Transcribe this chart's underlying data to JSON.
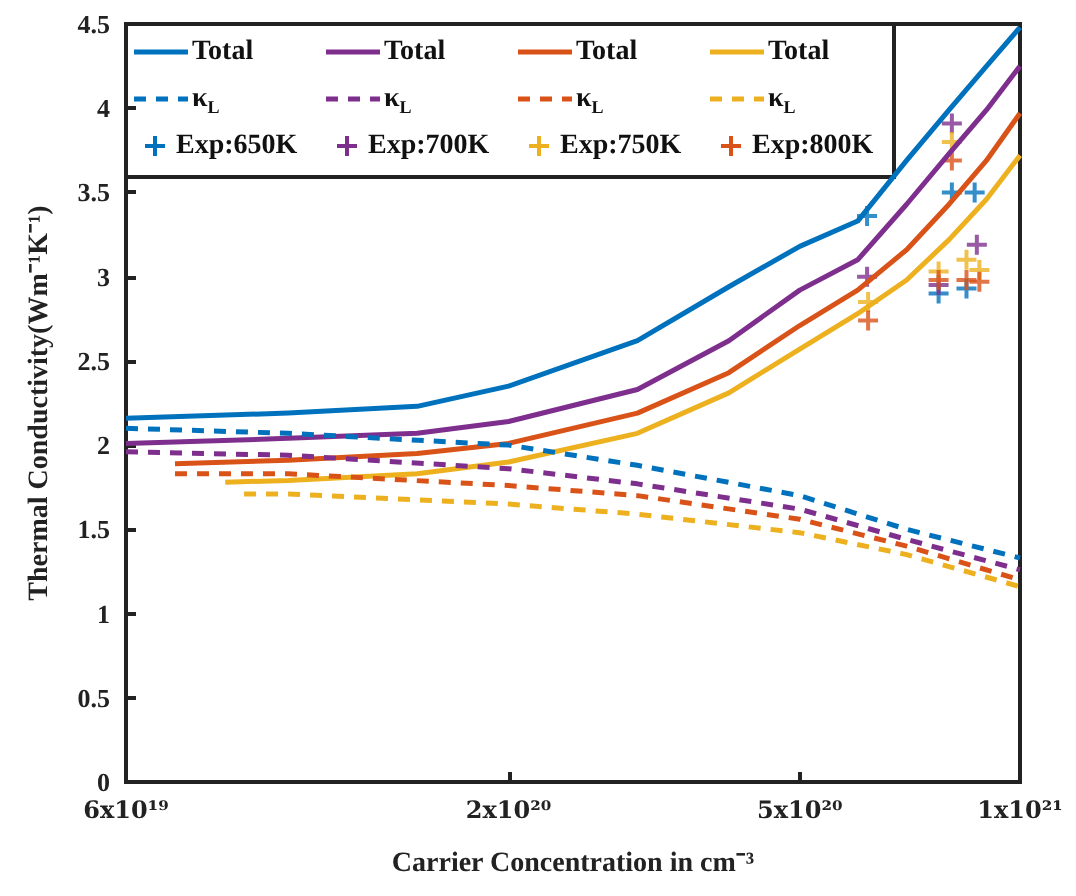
{
  "chart_data": {
    "type": "line",
    "xlabel": "Carrier Concentration in cm⁻³",
    "ylabel": "Thermal Conductivity(Wm⁻¹K⁻¹)",
    "log": "x",
    "xlim": [
      6e+19,
      1e+21
    ],
    "xticks": [
      {
        "value": 6e+19,
        "label": "6x10¹⁹"
      },
      {
        "value": 2e+20,
        "label": "2x10²⁰"
      },
      {
        "value": 5e+20,
        "label": "5x10²⁰"
      },
      {
        "value": 1e+21,
        "label": "1x10²¹"
      }
    ],
    "ylim": [
      0,
      4.5
    ],
    "yticks": [
      0,
      0.5,
      1,
      1.5,
      2,
      2.5,
      3,
      3.5,
      4,
      4.5
    ],
    "grid": false,
    "legend": "top left",
    "series": [
      {
        "name": "Total",
        "line_style": "solid",
        "marker": "none",
        "color": "#0072bd",
        "x": [
          6e+19,
          1e+20,
          1.5e+20,
          2e+20,
          3e+20,
          4e+20,
          5e+20,
          6e+20,
          7e+20,
          8e+20,
          9e+20,
          1e+21
        ],
        "values": [
          2.16,
          2.19,
          2.23,
          2.35,
          2.62,
          2.94,
          3.18,
          3.33,
          3.69,
          3.99,
          4.25,
          4.48
        ]
      },
      {
        "name": "Total",
        "line_style": "solid",
        "marker": "none",
        "color": "#7e2f8e",
        "x": [
          6e+19,
          1e+20,
          1.5e+20,
          2e+20,
          3e+20,
          4e+20,
          5e+20,
          6e+20,
          7e+20,
          8e+20,
          9e+20,
          1e+21
        ],
        "values": [
          2.01,
          2.04,
          2.07,
          2.14,
          2.33,
          2.62,
          2.92,
          3.1,
          3.43,
          3.73,
          3.99,
          4.25
        ]
      },
      {
        "name": "Total",
        "line_style": "solid",
        "marker": "none",
        "color": "#d95319",
        "x": [
          7e+19,
          1e+20,
          1.5e+20,
          2e+20,
          3e+20,
          4e+20,
          5e+20,
          6e+20,
          7e+20,
          8e+20,
          9e+20,
          1e+21
        ],
        "values": [
          1.89,
          1.91,
          1.95,
          2.01,
          2.19,
          2.43,
          2.71,
          2.92,
          3.16,
          3.43,
          3.69,
          3.97
        ]
      },
      {
        "name": "Total",
        "line_style": "solid",
        "marker": "none",
        "color": "#edb120",
        "x": [
          8.2e+19,
          1e+20,
          1.5e+20,
          2e+20,
          3e+20,
          4e+20,
          5e+20,
          6e+20,
          7e+20,
          8e+20,
          9e+20,
          1e+21
        ],
        "values": [
          1.78,
          1.79,
          1.83,
          1.9,
          2.07,
          2.31,
          2.57,
          2.78,
          2.98,
          3.22,
          3.46,
          3.72
        ]
      },
      {
        "name": "κ$_{L}$",
        "line_style": "dashed",
        "marker": "none",
        "color": "#0072bd",
        "x": [
          6e+19,
          1e+20,
          2e+20,
          3e+20,
          5e+20,
          7e+20,
          1e+21
        ],
        "values": [
          2.1,
          2.07,
          2.0,
          1.88,
          1.7,
          1.5,
          1.33
        ]
      },
      {
        "name": "κ$_{L}$",
        "line_style": "dashed",
        "marker": "none",
        "color": "#7e2f8e",
        "x": [
          6e+19,
          1e+20,
          2e+20,
          3e+20,
          5e+20,
          7e+20,
          1e+21
        ],
        "values": [
          1.96,
          1.94,
          1.86,
          1.77,
          1.62,
          1.44,
          1.26
        ]
      },
      {
        "name": "κ$_{L}$",
        "line_style": "dashed",
        "marker": "none",
        "color": "#d95319",
        "x": [
          7e+19,
          1e+20,
          2e+20,
          3e+20,
          5e+20,
          7e+20,
          1e+21
        ],
        "values": [
          1.83,
          1.83,
          1.76,
          1.7,
          1.56,
          1.4,
          1.2
        ]
      },
      {
        "name": "κ$_{L}$",
        "line_style": "dashed",
        "marker": "none",
        "color": "#edb120",
        "x": [
          8.7e+19,
          1e+20,
          2e+20,
          3e+20,
          5e+20,
          7e+20,
          1e+21
        ],
        "values": [
          1.71,
          1.71,
          1.65,
          1.59,
          1.48,
          1.35,
          1.16
        ]
      },
      {
        "name": "Exp:650K",
        "type": "scatter",
        "marker": "cross",
        "color": "#0072bd",
        "x": [
          6.18e+20,
          8.07e+20,
          8.67e+20,
          7.74e+20,
          8.45e+20
        ],
        "values": [
          3.36,
          3.5,
          3.5,
          2.9,
          2.93
        ]
      },
      {
        "name": "Exp:700K",
        "type": "scatter",
        "marker": "cross",
        "color": "#7e2f8e",
        "x": [
          6.18e+20,
          8.07e+20,
          8.73e+20,
          7.74e+20
        ],
        "values": [
          3.0,
          3.91,
          3.19,
          2.95
        ]
      },
      {
        "name": "Exp:750K",
        "type": "scatter",
        "marker": "cross",
        "color": "#edb120",
        "x": [
          6.2e+20,
          8.07e+20,
          7.74e+20,
          8.45e+20,
          8.8e+20
        ],
        "values": [
          2.85,
          3.8,
          3.03,
          3.1,
          3.04
        ]
      },
      {
        "name": "Exp:800K",
        "type": "scatter",
        "marker": "cross",
        "color": "#d95319",
        "x": [
          6.2e+20,
          8.07e+20,
          7.74e+20,
          8.45e+20,
          8.8e+20
        ],
        "values": [
          2.74,
          3.69,
          2.98,
          2.98,
          2.97
        ]
      }
    ]
  }
}
